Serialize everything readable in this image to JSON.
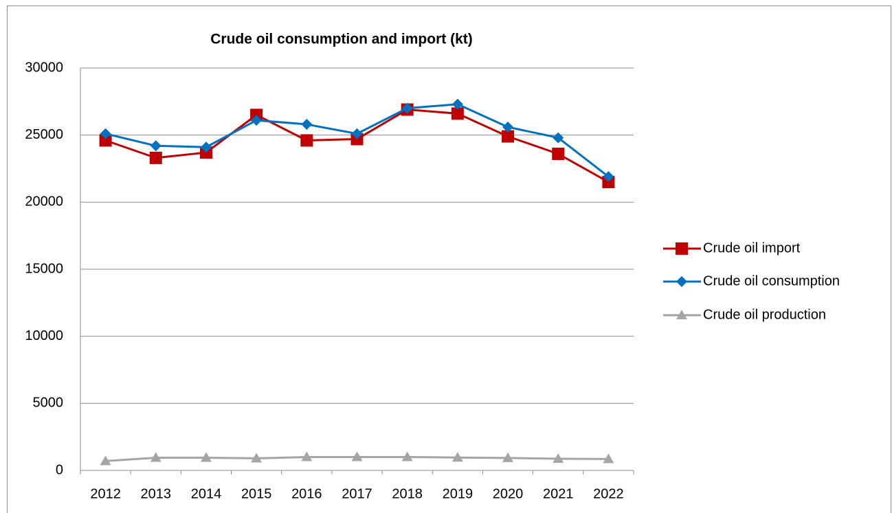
{
  "chart_data": {
    "type": "line",
    "title": "Crude oil consumption and import (kt)",
    "categories": [
      "2012",
      "2013",
      "2014",
      "2015",
      "2016",
      "2017",
      "2018",
      "2019",
      "2020",
      "2021",
      "2022"
    ],
    "series": [
      {
        "name": "Crude oil import",
        "color": "#c00000",
        "marker": "square",
        "values": [
          24600,
          23300,
          23700,
          26500,
          24600,
          24700,
          26900,
          26600,
          24900,
          23600,
          21500
        ]
      },
      {
        "name": "Crude oil consumption",
        "color": "#0070c0",
        "marker": "diamond",
        "values": [
          25100,
          24200,
          24100,
          26100,
          25800,
          25100,
          27000,
          27300,
          25600,
          24800,
          21900
        ]
      },
      {
        "name": "Crude oil production",
        "color": "#a5a5a5",
        "marker": "triangle",
        "values": [
          700,
          950,
          950,
          900,
          1000,
          1000,
          1000,
          960,
          930,
          870,
          850
        ]
      }
    ],
    "ylim": [
      0,
      30000
    ],
    "yticks": [
      0,
      5000,
      10000,
      15000,
      20000,
      25000,
      30000
    ],
    "grid": true,
    "legend": "right"
  }
}
